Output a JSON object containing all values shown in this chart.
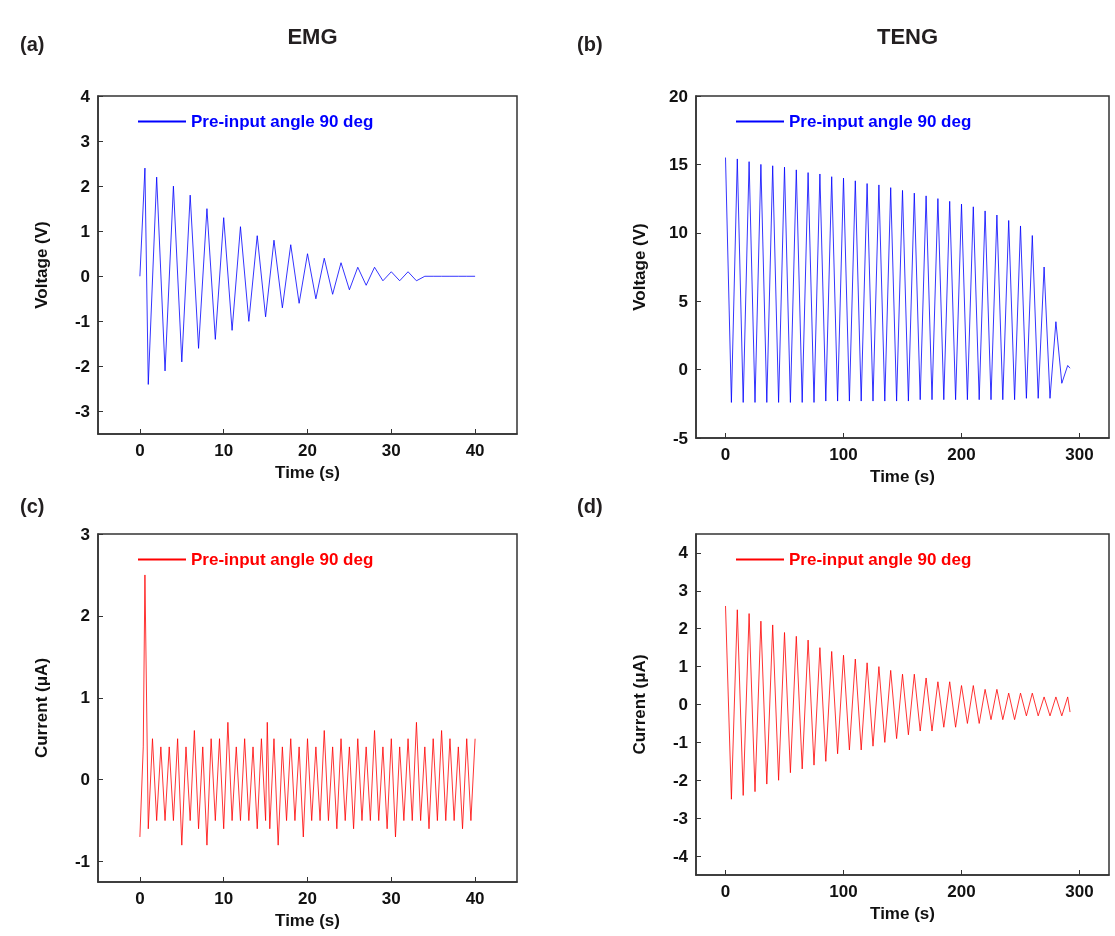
{
  "chart_data": [
    {
      "type": "line",
      "title": "EMG",
      "xlabel": "Time (s)",
      "ylabel": "Voltage (V)",
      "annotations": [
        "(a)"
      ],
      "legend": "top",
      "xlim": [
        -5,
        45
      ],
      "xticks": [
        0,
        10,
        20,
        30,
        40
      ],
      "ylim": [
        -3.5,
        4
      ],
      "yticks": [
        -3,
        -2,
        -1,
        0,
        1,
        2,
        3,
        4
      ],
      "x": [
        0,
        0.6,
        1,
        2,
        3,
        4,
        5,
        6,
        7,
        8,
        9,
        10,
        11,
        12,
        13,
        14,
        15,
        16,
        17,
        18,
        19,
        20,
        21,
        22,
        23,
        24,
        25,
        26,
        27,
        28,
        29,
        30,
        31,
        32,
        33,
        34,
        35,
        36,
        37,
        38,
        39,
        40
      ],
      "series": [
        {
          "name": "Pre-input angle 90 deg",
          "color": "#0000ff",
          "values": [
            0,
            2.4,
            -2.4,
            2.2,
            -2.1,
            2.0,
            -1.9,
            1.8,
            -1.6,
            1.5,
            -1.4,
            1.3,
            -1.2,
            1.1,
            -1.0,
            0.9,
            -0.9,
            0.8,
            -0.7,
            0.7,
            -0.6,
            0.5,
            -0.5,
            0.4,
            -0.4,
            0.3,
            -0.3,
            0.2,
            -0.2,
            0.2,
            -0.1,
            0.1,
            -0.1,
            0.1,
            -0.1,
            0,
            0,
            0,
            0,
            0,
            0,
            0
          ]
        }
      ]
    },
    {
      "type": "line",
      "title": "TENG",
      "xlabel": "Time (s)",
      "ylabel": "Voltage (V)",
      "annotations": [
        "(b)"
      ],
      "legend": "top",
      "xlim": [
        -25,
        325
      ],
      "xticks": [
        0,
        100,
        200,
        300
      ],
      "ylim": [
        -5,
        20
      ],
      "yticks": [
        -5,
        0,
        5,
        10,
        15,
        20
      ],
      "x": [
        0,
        5,
        10,
        15,
        20,
        25,
        30,
        35,
        40,
        45,
        50,
        55,
        60,
        65,
        70,
        75,
        80,
        85,
        90,
        95,
        100,
        105,
        110,
        115,
        120,
        125,
        130,
        135,
        140,
        145,
        150,
        155,
        160,
        165,
        170,
        175,
        180,
        185,
        190,
        195,
        200,
        205,
        210,
        215,
        220,
        225,
        230,
        235,
        240,
        245,
        250,
        255,
        260,
        265,
        270,
        275,
        280,
        285,
        290,
        292
      ],
      "series": [
        {
          "name": "Pre-input angle 90 deg",
          "color": "#0000ff",
          "values": [
            15.5,
            -2.4,
            15.4,
            -2.4,
            15.2,
            -2.4,
            15.0,
            -2.4,
            14.9,
            -2.4,
            14.8,
            -2.4,
            14.6,
            -2.4,
            14.4,
            -2.4,
            14.3,
            -2.3,
            14.1,
            -2.3,
            14.0,
            -2.3,
            13.8,
            -2.3,
            13.6,
            -2.3,
            13.5,
            -2.3,
            13.3,
            -2.3,
            13.1,
            -2.3,
            12.9,
            -2.2,
            12.7,
            -2.2,
            12.5,
            -2.2,
            12.3,
            -2.2,
            12.1,
            -2.2,
            11.9,
            -2.2,
            11.6,
            -2.2,
            11.3,
            -2.2,
            10.9,
            -2.2,
            10.5,
            -2.1,
            9.8,
            -2.1,
            7.5,
            -2.1,
            3.5,
            -1.0,
            0.3,
            0.1
          ]
        }
      ]
    },
    {
      "type": "line",
      "xlabel": "Time (s)",
      "ylabel": "Current (μA)",
      "annotations": [
        "(c)"
      ],
      "legend": "top",
      "xlim": [
        -5,
        45
      ],
      "xticks": [
        0,
        10,
        20,
        30,
        40
      ],
      "ylim": [
        -1.25,
        3
      ],
      "yticks": [
        -1,
        0,
        1,
        2,
        3
      ],
      "x": [
        0,
        0.4,
        0.6,
        1,
        1.5,
        2,
        2.5,
        3,
        3.5,
        4,
        4.5,
        5,
        5.5,
        6,
        6.5,
        7,
        7.5,
        8,
        8.5,
        9,
        9.5,
        10,
        10.5,
        11,
        11.5,
        12,
        12.5,
        13,
        13.5,
        14,
        14.5,
        15,
        15.2,
        15.5,
        16,
        16.5,
        17,
        17.5,
        18,
        18.5,
        19,
        19.5,
        20,
        20.5,
        21,
        21.5,
        22,
        22.5,
        23,
        23.5,
        24,
        24.5,
        25,
        25.5,
        26,
        26.5,
        27,
        27.5,
        28,
        28.5,
        29,
        29.5,
        30,
        30.5,
        31,
        31.5,
        32,
        32.5,
        33,
        33.5,
        34,
        34.5,
        35,
        35.5,
        36,
        36.5,
        37,
        37.5,
        38,
        38.5,
        39,
        39.5,
        40
      ],
      "series": [
        {
          "name": "Pre-input angle 90 deg",
          "color": "#ff0000",
          "values": [
            -0.7,
            0.4,
            2.5,
            -0.6,
            0.5,
            -0.5,
            0.4,
            -0.5,
            0.4,
            -0.5,
            0.5,
            -0.8,
            0.4,
            -0.5,
            0.6,
            -0.6,
            0.4,
            -0.8,
            0.5,
            -0.5,
            0.5,
            -0.6,
            0.7,
            -0.5,
            0.4,
            -0.5,
            0.5,
            -0.5,
            0.4,
            -0.6,
            0.5,
            -0.5,
            0.7,
            -0.6,
            0.5,
            -0.8,
            0.4,
            -0.5,
            0.5,
            -0.5,
            0.4,
            -0.7,
            0.5,
            -0.5,
            0.4,
            -0.5,
            0.6,
            -0.5,
            0.4,
            -0.6,
            0.5,
            -0.5,
            0.4,
            -0.6,
            0.5,
            -0.5,
            0.4,
            -0.5,
            0.6,
            -0.5,
            0.4,
            -0.6,
            0.5,
            -0.7,
            0.4,
            -0.5,
            0.5,
            -0.5,
            0.7,
            -0.5,
            0.4,
            -0.6,
            0.5,
            -0.5,
            0.6,
            -0.5,
            0.5,
            -0.5,
            0.4,
            -0.6,
            0.5,
            -0.5,
            0.5
          ]
        }
      ]
    },
    {
      "type": "line",
      "xlabel": "Time (s)",
      "ylabel": "Current (μA)",
      "annotations": [
        "(d)"
      ],
      "legend": "top",
      "xlim": [
        -25,
        325
      ],
      "xticks": [
        0,
        100,
        200,
        300
      ],
      "ylim": [
        -4.5,
        4.5
      ],
      "yticks": [
        -4,
        -3,
        -2,
        -1,
        0,
        1,
        2,
        3,
        4
      ],
      "x": [
        0,
        5,
        10,
        15,
        20,
        25,
        30,
        35,
        40,
        45,
        50,
        55,
        60,
        65,
        70,
        75,
        80,
        85,
        90,
        95,
        100,
        105,
        110,
        115,
        120,
        125,
        130,
        135,
        140,
        145,
        150,
        155,
        160,
        165,
        170,
        175,
        180,
        185,
        190,
        195,
        200,
        205,
        210,
        215,
        220,
        225,
        230,
        235,
        240,
        245,
        250,
        255,
        260,
        265,
        270,
        275,
        280,
        285,
        290,
        292
      ],
      "series": [
        {
          "name": "Pre-input angle 90 deg",
          "color": "#ff0000",
          "values": [
            2.6,
            -2.5,
            2.5,
            -2.4,
            2.4,
            -2.3,
            2.2,
            -2.1,
            2.1,
            -2.0,
            1.9,
            -1.8,
            1.8,
            -1.7,
            1.7,
            -1.6,
            1.5,
            -1.5,
            1.4,
            -1.3,
            1.3,
            -1.2,
            1.2,
            -1.2,
            1.1,
            -1.1,
            1.0,
            -1.0,
            0.9,
            -0.9,
            0.8,
            -0.8,
            0.8,
            -0.7,
            0.7,
            -0.7,
            0.6,
            -0.6,
            0.6,
            -0.6,
            0.5,
            -0.5,
            0.5,
            -0.5,
            0.4,
            -0.4,
            0.4,
            -0.4,
            0.3,
            -0.4,
            0.3,
            -0.3,
            0.3,
            -0.3,
            0.2,
            -0.3,
            0.2,
            -0.3,
            0.2,
            -0.2
          ]
        }
      ]
    }
  ]
}
